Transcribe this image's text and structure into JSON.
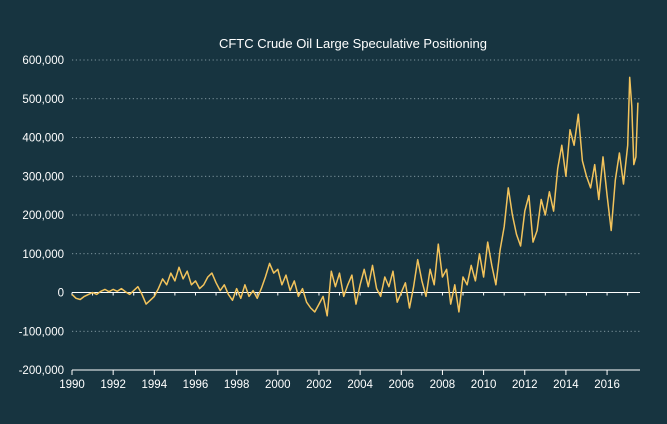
{
  "chart_data": {
    "type": "line",
    "title": "CFTC Crude Oil Large Speculative Positioning",
    "xlabel": "",
    "ylabel": "",
    "xlim": [
      1990,
      2017.6
    ],
    "ylim": [
      -200000,
      600000
    ],
    "x_ticks": [
      1990,
      1992,
      1994,
      1996,
      1998,
      2000,
      2002,
      2004,
      2006,
      2008,
      2010,
      2012,
      2014,
      2016
    ],
    "x_tick_labels": [
      "1990",
      "1992",
      "1994",
      "1996",
      "1998",
      "2000",
      "2002",
      "2004",
      "2006",
      "2008",
      "2010",
      "2012",
      "2014",
      "2016"
    ],
    "y_ticks": [
      -200000,
      -100000,
      0,
      100000,
      200000,
      300000,
      400000,
      500000,
      600000
    ],
    "y_tick_labels": [
      "-200,000",
      "-100,000",
      "0",
      "100,000",
      "200,000",
      "300,000",
      "400,000",
      "500,000",
      "600,000"
    ],
    "grid": true,
    "legend": "none",
    "series": [
      {
        "color": "#f2c35c",
        "points": [
          [
            1990.0,
            -5000
          ],
          [
            1990.2,
            -15000
          ],
          [
            1990.4,
            -18000
          ],
          [
            1990.6,
            -10000
          ],
          [
            1990.8,
            -5000
          ],
          [
            1991.0,
            0
          ],
          [
            1991.2,
            -5000
          ],
          [
            1991.4,
            3000
          ],
          [
            1991.6,
            8000
          ],
          [
            1991.8,
            2000
          ],
          [
            1992.0,
            8000
          ],
          [
            1992.2,
            3000
          ],
          [
            1992.4,
            10000
          ],
          [
            1992.6,
            2000
          ],
          [
            1992.8,
            -5000
          ],
          [
            1993.0,
            5000
          ],
          [
            1993.2,
            15000
          ],
          [
            1993.4,
            -5000
          ],
          [
            1993.6,
            -30000
          ],
          [
            1993.8,
            -20000
          ],
          [
            1994.0,
            -10000
          ],
          [
            1994.2,
            10000
          ],
          [
            1994.4,
            35000
          ],
          [
            1994.6,
            20000
          ],
          [
            1994.8,
            50000
          ],
          [
            1995.0,
            30000
          ],
          [
            1995.2,
            65000
          ],
          [
            1995.4,
            35000
          ],
          [
            1995.6,
            55000
          ],
          [
            1995.8,
            20000
          ],
          [
            1996.0,
            30000
          ],
          [
            1996.2,
            10000
          ],
          [
            1996.4,
            20000
          ],
          [
            1996.6,
            40000
          ],
          [
            1996.8,
            50000
          ],
          [
            1997.0,
            25000
          ],
          [
            1997.2,
            5000
          ],
          [
            1997.4,
            20000
          ],
          [
            1997.6,
            -5000
          ],
          [
            1997.8,
            -20000
          ],
          [
            1998.0,
            10000
          ],
          [
            1998.2,
            -15000
          ],
          [
            1998.4,
            20000
          ],
          [
            1998.6,
            -10000
          ],
          [
            1998.8,
            5000
          ],
          [
            1999.0,
            -15000
          ],
          [
            1999.2,
            10000
          ],
          [
            1999.4,
            40000
          ],
          [
            1999.6,
            75000
          ],
          [
            1999.8,
            50000
          ],
          [
            2000.0,
            60000
          ],
          [
            2000.2,
            20000
          ],
          [
            2000.4,
            45000
          ],
          [
            2000.6,
            5000
          ],
          [
            2000.8,
            30000
          ],
          [
            2001.0,
            -10000
          ],
          [
            2001.2,
            10000
          ],
          [
            2001.4,
            -25000
          ],
          [
            2001.6,
            -40000
          ],
          [
            2001.8,
            -50000
          ],
          [
            2002.0,
            -30000
          ],
          [
            2002.2,
            -10000
          ],
          [
            2002.4,
            -60000
          ],
          [
            2002.6,
            55000
          ],
          [
            2002.8,
            15000
          ],
          [
            2003.0,
            50000
          ],
          [
            2003.2,
            -10000
          ],
          [
            2003.4,
            20000
          ],
          [
            2003.6,
            45000
          ],
          [
            2003.8,
            -30000
          ],
          [
            2004.0,
            20000
          ],
          [
            2004.2,
            60000
          ],
          [
            2004.4,
            15000
          ],
          [
            2004.6,
            70000
          ],
          [
            2004.8,
            10000
          ],
          [
            2005.0,
            -10000
          ],
          [
            2005.2,
            40000
          ],
          [
            2005.4,
            15000
          ],
          [
            2005.6,
            55000
          ],
          [
            2005.8,
            -25000
          ],
          [
            2006.0,
            0
          ],
          [
            2006.2,
            25000
          ],
          [
            2006.4,
            -40000
          ],
          [
            2006.6,
            15000
          ],
          [
            2006.8,
            85000
          ],
          [
            2007.0,
            30000
          ],
          [
            2007.2,
            -10000
          ],
          [
            2007.4,
            60000
          ],
          [
            2007.6,
            20000
          ],
          [
            2007.8,
            125000
          ],
          [
            2008.0,
            40000
          ],
          [
            2008.2,
            60000
          ],
          [
            2008.4,
            -30000
          ],
          [
            2008.6,
            20000
          ],
          [
            2008.8,
            -50000
          ],
          [
            2009.0,
            40000
          ],
          [
            2009.2,
            20000
          ],
          [
            2009.4,
            70000
          ],
          [
            2009.6,
            30000
          ],
          [
            2009.8,
            100000
          ],
          [
            2010.0,
            40000
          ],
          [
            2010.2,
            130000
          ],
          [
            2010.4,
            70000
          ],
          [
            2010.6,
            20000
          ],
          [
            2010.8,
            110000
          ],
          [
            2011.0,
            170000
          ],
          [
            2011.2,
            270000
          ],
          [
            2011.4,
            200000
          ],
          [
            2011.6,
            150000
          ],
          [
            2011.8,
            120000
          ],
          [
            2012.0,
            210000
          ],
          [
            2012.2,
            250000
          ],
          [
            2012.4,
            130000
          ],
          [
            2012.6,
            160000
          ],
          [
            2012.8,
            240000
          ],
          [
            2013.0,
            200000
          ],
          [
            2013.2,
            260000
          ],
          [
            2013.4,
            210000
          ],
          [
            2013.6,
            320000
          ],
          [
            2013.8,
            380000
          ],
          [
            2014.0,
            300000
          ],
          [
            2014.2,
            420000
          ],
          [
            2014.4,
            380000
          ],
          [
            2014.6,
            460000
          ],
          [
            2014.8,
            340000
          ],
          [
            2015.0,
            300000
          ],
          [
            2015.2,
            270000
          ],
          [
            2015.4,
            330000
          ],
          [
            2015.6,
            240000
          ],
          [
            2015.8,
            350000
          ],
          [
            2016.0,
            250000
          ],
          [
            2016.2,
            160000
          ],
          [
            2016.4,
            290000
          ],
          [
            2016.6,
            360000
          ],
          [
            2016.8,
            280000
          ],
          [
            2017.0,
            380000
          ],
          [
            2017.1,
            555000
          ],
          [
            2017.2,
            480000
          ],
          [
            2017.3,
            330000
          ],
          [
            2017.4,
            350000
          ],
          [
            2017.5,
            490000
          ]
        ]
      }
    ]
  }
}
